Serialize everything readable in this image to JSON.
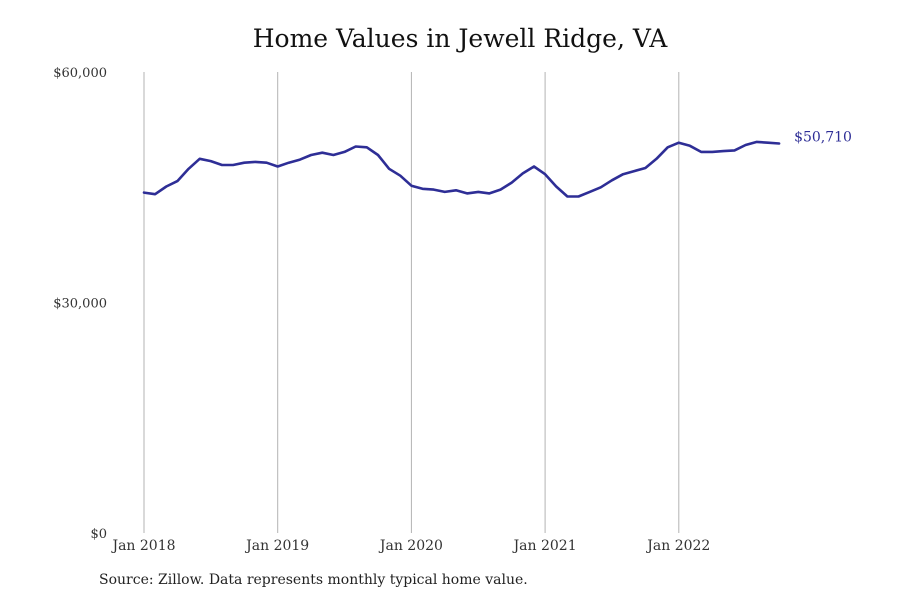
{
  "chart_data": {
    "type": "line",
    "title": "Home Values in Jewell Ridge, VA",
    "xlabel": "",
    "ylabel": "",
    "source_note": "Source: Zillow. Data represents monthly typical home value.",
    "y_ticks": [
      {
        "value": 0,
        "label": "$0"
      },
      {
        "value": 30000,
        "label": "$30,000"
      },
      {
        "value": 60000,
        "label": "$60,000"
      }
    ],
    "x_ticks": [
      {
        "value": "2018-01",
        "label": "Jan 2018"
      },
      {
        "value": "2019-01",
        "label": "Jan 2019"
      },
      {
        "value": "2020-01",
        "label": "Jan 2020"
      },
      {
        "value": "2021-01",
        "label": "Jan 2021"
      },
      {
        "value": "2022-01",
        "label": "Jan 2022"
      }
    ],
    "ylim": [
      0,
      60000
    ],
    "xlim": [
      "2018-01",
      "2022-11"
    ],
    "grid": "vertical lines at x ticks",
    "line_color": "#2e2e96",
    "last_value_label": "$50,710",
    "series": [
      {
        "x": [
          "2018-01",
          "2018-02",
          "2018-03",
          "2018-04",
          "2018-05",
          "2018-06",
          "2018-07",
          "2018-08",
          "2018-09",
          "2018-10",
          "2018-11",
          "2018-12",
          "2019-01",
          "2019-02",
          "2019-03",
          "2019-04",
          "2019-05",
          "2019-06",
          "2019-07",
          "2019-08",
          "2019-09",
          "2019-10",
          "2019-11",
          "2019-12",
          "2020-01",
          "2020-02",
          "2020-03",
          "2020-04",
          "2020-05",
          "2020-06",
          "2020-07",
          "2020-08",
          "2020-09",
          "2020-10",
          "2020-11",
          "2020-12",
          "2021-01",
          "2021-02",
          "2021-03",
          "2021-04",
          "2021-05",
          "2021-06",
          "2021-07",
          "2021-08",
          "2021-09",
          "2021-10",
          "2021-11",
          "2021-12",
          "2022-01",
          "2022-02",
          "2022-03",
          "2022-04",
          "2022-05",
          "2022-06",
          "2022-07",
          "2022-08",
          "2022-09",
          "2022-10"
        ],
        "values": [
          44300,
          44100,
          45100,
          45800,
          47400,
          48700,
          48400,
          47900,
          47900,
          48200,
          48300,
          48200,
          47700,
          48200,
          48600,
          49200,
          49500,
          49200,
          49600,
          50300,
          50200,
          49200,
          47400,
          46500,
          45200,
          44800,
          44700,
          44400,
          44600,
          44200,
          44400,
          44200,
          44700,
          45600,
          46800,
          47700,
          46700,
          45100,
          43800,
          43800,
          44400,
          45000,
          45900,
          46700,
          47100,
          47500,
          48700,
          50200,
          50800,
          50400,
          49600,
          49600,
          49700,
          49800,
          50500,
          50900,
          50800,
          50700
        ]
      }
    ]
  }
}
